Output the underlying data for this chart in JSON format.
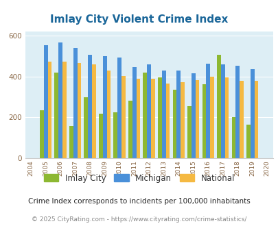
{
  "title": "Imlay City Violent Crime Index",
  "years": [
    2004,
    2005,
    2006,
    2007,
    2008,
    2009,
    2010,
    2011,
    2012,
    2013,
    2014,
    2015,
    2016,
    2017,
    2018,
    2019,
    2020
  ],
  "imlay_city": [
    null,
    235,
    420,
    158,
    300,
    218,
    225,
    282,
    420,
    395,
    335,
    255,
    362,
    505,
    200,
    165,
    null
  ],
  "michigan": [
    null,
    553,
    568,
    540,
    505,
    500,
    492,
    447,
    458,
    430,
    430,
    415,
    462,
    458,
    452,
    435,
    null
  ],
  "national": [
    null,
    472,
    474,
    468,
    460,
    428,
    404,
    388,
    390,
    365,
    372,
    383,
    398,
    396,
    380,
    379,
    null
  ],
  "bar_width": 0.27,
  "color_imlay": "#8db832",
  "color_michigan": "#4a90d9",
  "color_national": "#f5b942",
  "bg_color": "#ddeef5",
  "ylim": [
    0,
    620
  ],
  "yticks": [
    0,
    200,
    400,
    600
  ],
  "footnote1": "Crime Index corresponds to incidents per 100,000 inhabitants",
  "footnote2": "© 2025 CityRating.com - https://www.cityrating.com/crime-statistics/",
  "title_color": "#1a6699",
  "footnote1_color": "#222222",
  "footnote2_color": "#888888",
  "legend_labels": [
    "Imlay City",
    "Michigan",
    "National"
  ]
}
